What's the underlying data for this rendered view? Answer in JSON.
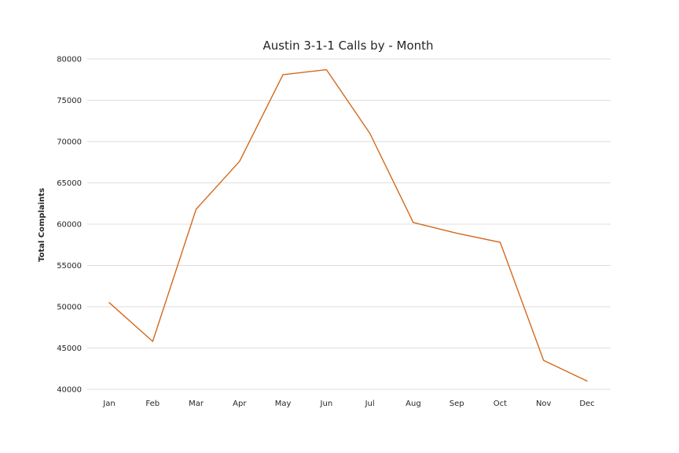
{
  "chart_data": {
    "type": "line",
    "title": "Austin 3-1-1 Calls by - Month",
    "xlabel": "",
    "ylabel": "Total Complaints",
    "categories": [
      "Jan",
      "Feb",
      "Mar",
      "Apr",
      "May",
      "Jun",
      "Jul",
      "Aug",
      "Sep",
      "Oct",
      "Nov",
      "Dec"
    ],
    "series": [
      {
        "values": [
          50500,
          45800,
          61800,
          67600,
          78100,
          78700,
          71000,
          60200,
          58900,
          57800,
          43500,
          41000
        ]
      }
    ],
    "ylim": [
      40000,
      80000
    ],
    "yticks": [
      40000,
      45000,
      50000,
      55000,
      60000,
      65000,
      70000,
      75000,
      80000
    ],
    "grid": true,
    "legend": "none",
    "colors": {
      "line": "#d2691e",
      "grid": "#d3d3d3",
      "text": "#262626"
    }
  }
}
